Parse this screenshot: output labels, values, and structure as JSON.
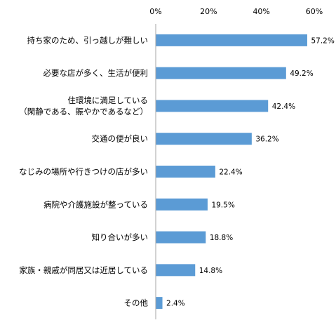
{
  "chart_data": {
    "type": "bar",
    "orientation": "horizontal",
    "xlim": [
      0,
      60
    ],
    "x_ticks": [
      0,
      20,
      40,
      60
    ],
    "x_tick_labels": [
      "0%",
      "20%",
      "40%",
      "60%"
    ],
    "x_axis_position": "top",
    "grid": false,
    "legend": "none",
    "bar_color": "#5b9bd5",
    "categories": [
      [
        "持ち家のため、引っ越しが難しい"
      ],
      [
        "必要な店が多く、生活が便利"
      ],
      [
        "住環境に満足している",
        "（閑静である、賑やかであるなど）"
      ],
      [
        "交通の便が良い"
      ],
      [
        "なじみの場所や行きつけの店が多い"
      ],
      [
        "病院や介護施設が整っている"
      ],
      [
        "知り合いが多い"
      ],
      [
        "家族・親戚が同居又は近居している"
      ],
      [
        "その他"
      ]
    ],
    "values": [
      57.2,
      49.2,
      42.4,
      36.2,
      22.4,
      19.5,
      18.8,
      14.8,
      2.4
    ],
    "value_labels": [
      "57.2%",
      "49.2%",
      "42.4%",
      "36.2%",
      "22.4%",
      "19.5%",
      "18.8%",
      "14.8%",
      "2.4%"
    ]
  }
}
